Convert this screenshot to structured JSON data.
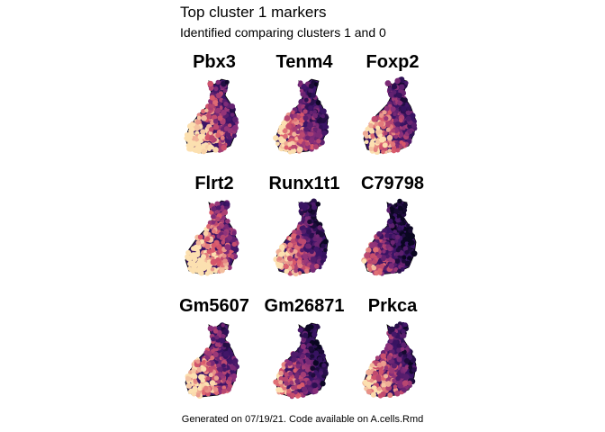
{
  "figure": {
    "title": "Top cluster 1 markers",
    "subtitle": "Identified comparing clusters 1 and 0",
    "caption": "Generated on 07/19/21. Code available on A.cells.Rmd"
  },
  "colors": {
    "palette_low": "#0a0620",
    "palette_mid_dark": "#3b1466",
    "palette_mid": "#8a2f7a",
    "palette_mid_light": "#d9586a",
    "palette_high": "#fce0b0",
    "outline": "#000000"
  },
  "chart_data": {
    "type": "scatter",
    "description_kind": "faceted embedding feature plots",
    "layout": "3x3 grid",
    "panels": [
      {
        "gene": "Pbx3",
        "expression_pattern": "high lower-left, low right edge",
        "high_side": "left",
        "level": 0.7
      },
      {
        "gene": "Tenm4",
        "expression_pattern": "high lower-left, low upper-right",
        "high_side": "left",
        "level": 0.55
      },
      {
        "gene": "Foxp2",
        "expression_pattern": "high lower-left, moderate elsewhere",
        "high_side": "left",
        "level": 0.6
      },
      {
        "gene": "Flrt2",
        "expression_pattern": "high broadly",
        "high_side": "left",
        "level": 0.8
      },
      {
        "gene": "Runx1t1",
        "expression_pattern": "moderate, lower on top",
        "high_side": "left",
        "level": 0.5
      },
      {
        "gene": "C79798",
        "expression_pattern": "low right, moderate left",
        "high_side": "left",
        "level": 0.3
      },
      {
        "gene": "Gm5607",
        "expression_pattern": "high lower-left, low right",
        "high_side": "left",
        "level": 0.65
      },
      {
        "gene": "Gm26871",
        "expression_pattern": "scattered, mixed",
        "high_side": "left",
        "level": 0.4
      },
      {
        "gene": "Prkca",
        "expression_pattern": "moderate, high lower-left",
        "high_side": "left",
        "level": 0.55
      }
    ]
  }
}
